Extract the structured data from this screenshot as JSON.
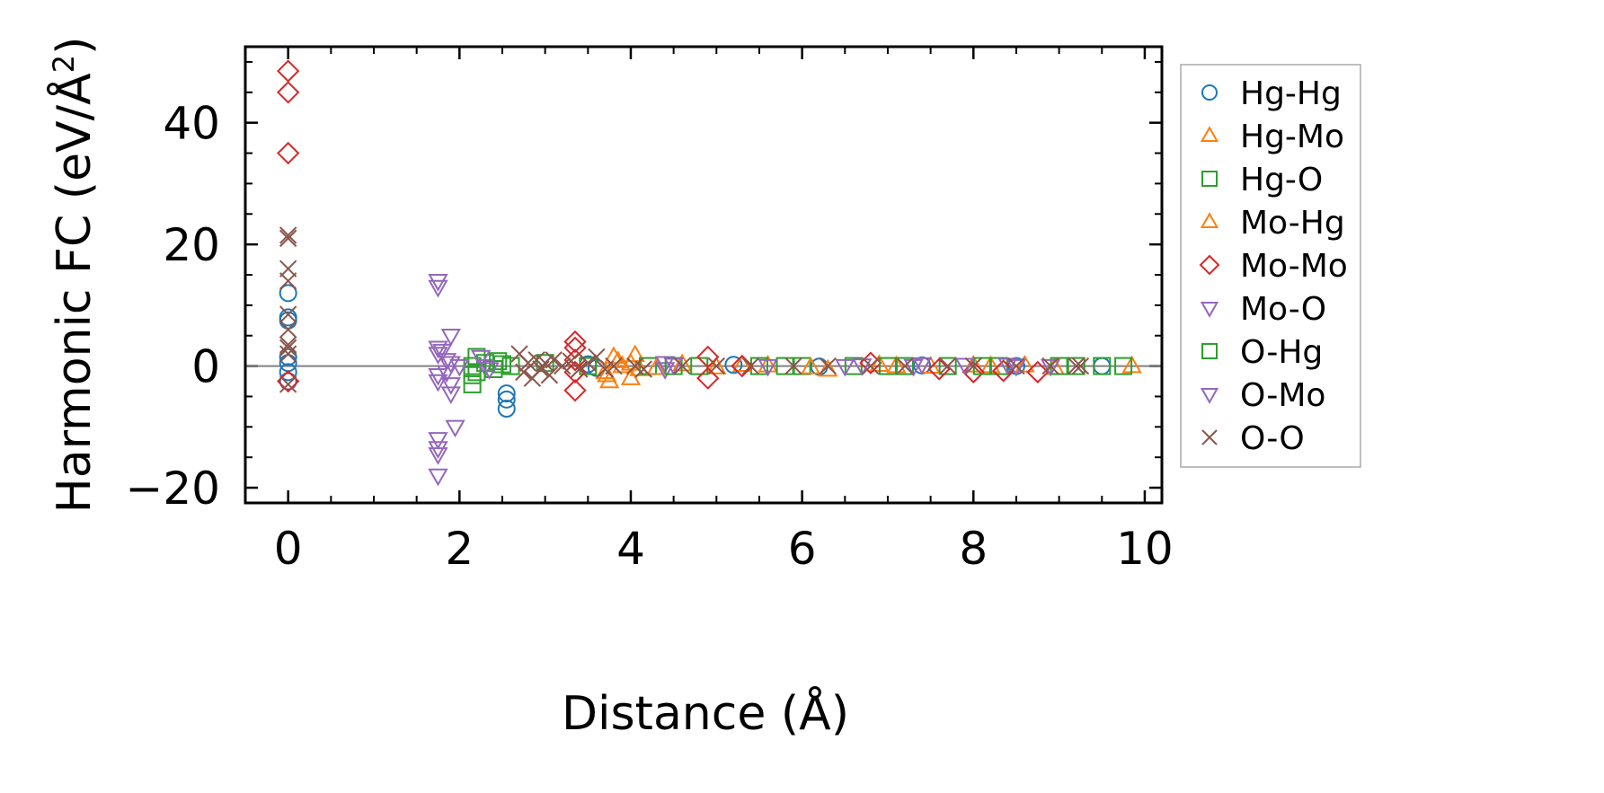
{
  "chart_data": {
    "type": "scatter",
    "xlabel": "Distance (Å)",
    "ylabel_main": "Harmonic FC (eV/Å",
    "ylabel_sup": "2",
    "ylabel_close": ")",
    "xlim": [
      -0.5,
      10.2
    ],
    "ylim": [
      -22.5,
      52.5
    ],
    "xticks": [
      0,
      2,
      4,
      6,
      8,
      10
    ],
    "xtick_labels": [
      "0",
      "2",
      "4",
      "6",
      "8",
      "10"
    ],
    "yticks": [
      -20,
      0,
      20,
      40
    ],
    "ytick_labels": [
      "−20",
      "0",
      "20",
      "40"
    ],
    "zero_line": true,
    "grid": false,
    "legend_position": "right, outside plot",
    "series": [
      {
        "name": "Hg-Hg",
        "marker": "circle",
        "color": "#1f77b4",
        "points": [
          [
            0,
            12
          ],
          [
            0,
            8
          ],
          [
            0,
            7.5
          ],
          [
            0,
            1.5
          ],
          [
            0,
            0.5
          ],
          [
            0,
            -1
          ],
          [
            0,
            -2.5
          ],
          [
            2.55,
            -4.5
          ],
          [
            2.55,
            -5.5
          ],
          [
            2.55,
            -7
          ],
          [
            3.5,
            0.3
          ],
          [
            3.6,
            -0.3
          ],
          [
            5.2,
            0.2
          ],
          [
            6.2,
            -0.1
          ],
          [
            7.4,
            0.1
          ],
          [
            8.5,
            0
          ],
          [
            9.5,
            0
          ]
        ]
      },
      {
        "name": "Hg-Mo",
        "marker": "triangle-up",
        "color": "#ff7f0e",
        "points": [
          [
            3.7,
            -1
          ],
          [
            3.75,
            -2.5
          ],
          [
            3.8,
            1.5
          ],
          [
            3.9,
            0
          ],
          [
            4.0,
            -2
          ],
          [
            4.05,
            1.8
          ],
          [
            4.1,
            -0.5
          ],
          [
            4.6,
            0.3
          ],
          [
            5.0,
            -0.2
          ],
          [
            5.6,
            0.1
          ],
          [
            6.3,
            -0.6
          ],
          [
            6.9,
            0.2
          ],
          [
            7.5,
            -0.1
          ],
          [
            8.2,
            0
          ],
          [
            8.6,
            0.1
          ],
          [
            8.95,
            -0.3
          ],
          [
            9.85,
            0
          ]
        ]
      },
      {
        "name": "Hg-O",
        "marker": "square",
        "color": "#2ca02c",
        "points": [
          [
            2.15,
            -3
          ],
          [
            2.15,
            -1.5
          ],
          [
            2.15,
            0
          ],
          [
            2.2,
            1.5
          ],
          [
            2.3,
            0.5
          ],
          [
            2.4,
            -0.5
          ],
          [
            2.5,
            0.3
          ],
          [
            2.6,
            0
          ],
          [
            3.0,
            0.5
          ],
          [
            3.5,
            0
          ],
          [
            4.2,
            0
          ],
          [
            4.8,
            0
          ],
          [
            5.5,
            0
          ],
          [
            6.0,
            0
          ],
          [
            6.6,
            0
          ],
          [
            7.2,
            0
          ],
          [
            7.7,
            0
          ],
          [
            8.3,
            0
          ],
          [
            9.0,
            0
          ],
          [
            9.5,
            0
          ],
          [
            9.75,
            0
          ]
        ]
      },
      {
        "name": "Mo-Hg",
        "marker": "triangle-up",
        "color": "#ff7f0e",
        "points": [
          [
            3.72,
            -1.5
          ],
          [
            3.85,
            0.8
          ],
          [
            4.0,
            0.4
          ],
          [
            4.3,
            -0.3
          ],
          [
            5.3,
            0.2
          ],
          [
            6.1,
            -0.2
          ],
          [
            7.1,
            0
          ],
          [
            8.0,
            0.1
          ]
        ]
      },
      {
        "name": "Mo-Mo",
        "marker": "diamond",
        "color": "#d62728",
        "points": [
          [
            0,
            48.5
          ],
          [
            0,
            45
          ],
          [
            0,
            35
          ],
          [
            0,
            -2.5
          ],
          [
            3.35,
            4
          ],
          [
            3.35,
            3
          ],
          [
            3.35,
            1
          ],
          [
            3.35,
            -1
          ],
          [
            3.35,
            -4
          ],
          [
            4.9,
            1.5
          ],
          [
            4.9,
            -2
          ],
          [
            5.3,
            0
          ],
          [
            6.8,
            0.5
          ],
          [
            7.6,
            -0.5
          ],
          [
            8.0,
            -1
          ],
          [
            8.35,
            -0.8
          ],
          [
            8.75,
            -1
          ]
        ]
      },
      {
        "name": "Mo-O",
        "marker": "triangle-down",
        "color": "#9467bd",
        "points": [
          [
            1.75,
            14
          ],
          [
            1.75,
            13
          ],
          [
            1.75,
            3
          ],
          [
            1.75,
            2
          ],
          [
            1.75,
            -1.5
          ],
          [
            1.75,
            -2.5
          ],
          [
            1.75,
            -12
          ],
          [
            1.75,
            -13.5
          ],
          [
            1.75,
            -14.5
          ],
          [
            1.75,
            -18
          ],
          [
            1.85,
            1
          ],
          [
            1.9,
            5
          ],
          [
            1.9,
            -3
          ],
          [
            1.9,
            -4.5
          ],
          [
            1.95,
            -10
          ],
          [
            2.0,
            0
          ],
          [
            2.25,
            1.5
          ],
          [
            2.3,
            0
          ],
          [
            4.4,
            0.5
          ],
          [
            4.4,
            -0.5
          ],
          [
            6.5,
            0
          ],
          [
            7.4,
            0.3
          ],
          [
            8.4,
            0.2
          ],
          [
            8.9,
            0
          ]
        ]
      },
      {
        "name": "O-Hg",
        "marker": "square",
        "color": "#2ca02c",
        "points": [
          [
            2.2,
            -1
          ],
          [
            2.45,
            0.8
          ],
          [
            4.5,
            0
          ],
          [
            5.8,
            0
          ],
          [
            7.0,
            0
          ],
          [
            8.1,
            0
          ],
          [
            9.2,
            0
          ]
        ]
      },
      {
        "name": "O-Mo",
        "marker": "triangle-down",
        "color": "#9467bd",
        "points": [
          [
            1.8,
            2.5
          ],
          [
            1.85,
            -1
          ],
          [
            1.9,
            0.5
          ],
          [
            2.35,
            -0.5
          ],
          [
            4.5,
            0.2
          ],
          [
            5.6,
            0
          ],
          [
            6.7,
            0.1
          ],
          [
            7.3,
            0
          ],
          [
            7.9,
            0.2
          ],
          [
            8.5,
            0
          ]
        ]
      },
      {
        "name": "O-O",
        "marker": "x",
        "color": "#8c564b",
        "points": [
          [
            0,
            21.5
          ],
          [
            0,
            21
          ],
          [
            0,
            16
          ],
          [
            0,
            14
          ],
          [
            0,
            8.5
          ],
          [
            0,
            6
          ],
          [
            0,
            3.5
          ],
          [
            0,
            3
          ],
          [
            0,
            2
          ],
          [
            0,
            -3
          ],
          [
            2.7,
            2
          ],
          [
            2.75,
            -1
          ],
          [
            2.8,
            0.5
          ],
          [
            2.85,
            -2
          ],
          [
            2.9,
            1
          ],
          [
            2.95,
            -0.5
          ],
          [
            3.0,
            0.5
          ],
          [
            3.05,
            -1.5
          ],
          [
            3.1,
            1
          ],
          [
            3.2,
            0
          ],
          [
            3.3,
            0.8
          ],
          [
            3.4,
            -0.5
          ],
          [
            3.5,
            0.5
          ],
          [
            3.6,
            1.5
          ],
          [
            3.7,
            -0.5
          ],
          [
            3.8,
            0
          ],
          [
            4.05,
            0
          ],
          [
            4.15,
            -0.5
          ],
          [
            4.6,
            0
          ],
          [
            5.0,
            0
          ],
          [
            5.4,
            0
          ],
          [
            5.9,
            0
          ],
          [
            6.3,
            0
          ],
          [
            6.8,
            0
          ],
          [
            7.2,
            0
          ],
          [
            7.7,
            0
          ],
          [
            8.0,
            0
          ],
          [
            8.5,
            0
          ],
          [
            8.9,
            0
          ],
          [
            9.2,
            0
          ],
          [
            9.25,
            0
          ]
        ]
      }
    ]
  }
}
